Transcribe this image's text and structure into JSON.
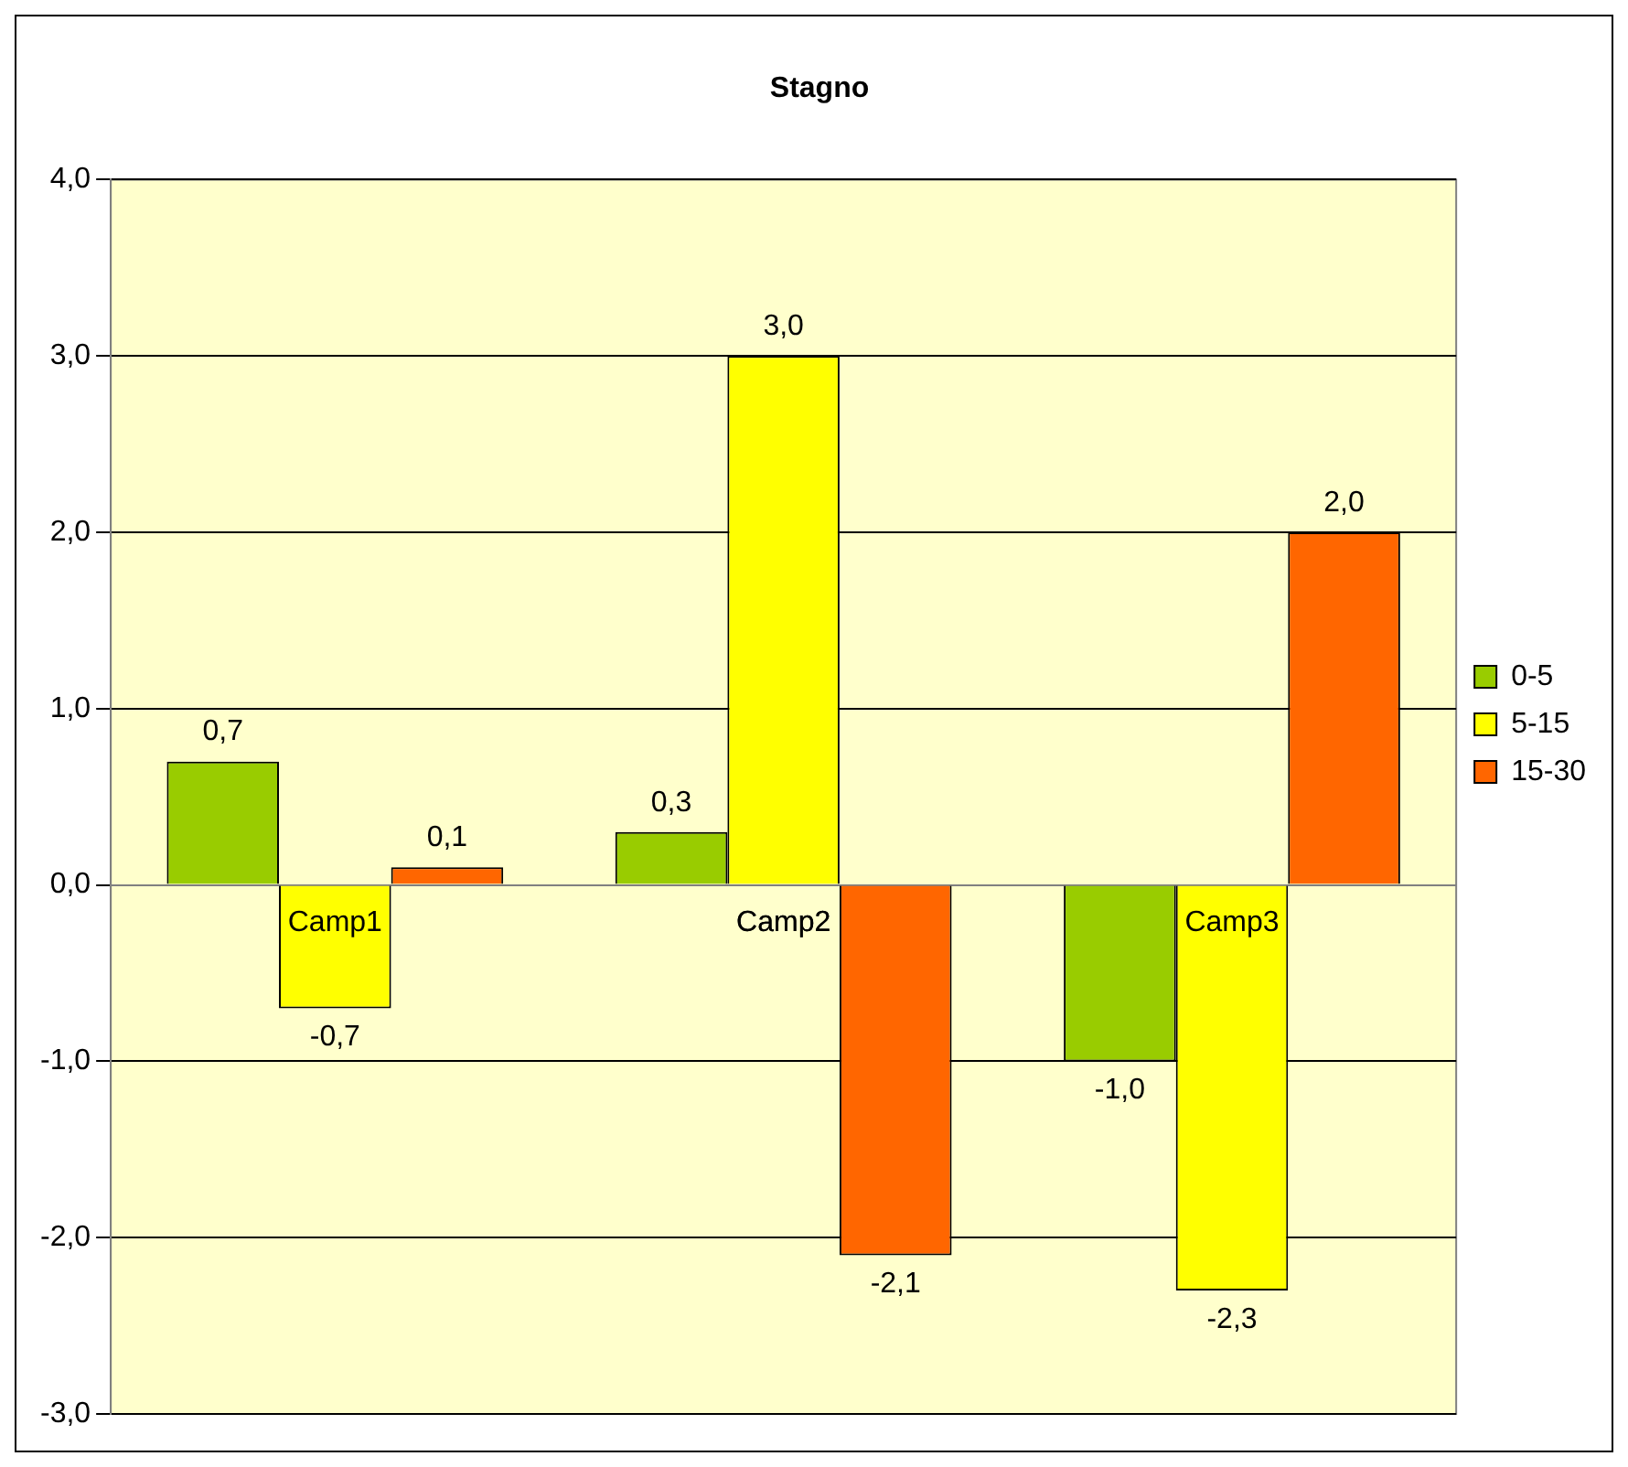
{
  "chart_data": {
    "type": "bar",
    "title": "Stagno",
    "categories": [
      "Camp1",
      "Camp2",
      "Camp3"
    ],
    "series": [
      {
        "name": "0-5",
        "color": "#99cc00",
        "values": [
          0.7,
          0.3,
          -1.0
        ],
        "value_labels": [
          "0,7",
          "0,3",
          "-1,0"
        ]
      },
      {
        "name": "5-15",
        "color": "#ffff00",
        "values": [
          -0.7,
          3.0,
          -2.3
        ],
        "value_labels": [
          "-0,7",
          "3,0",
          "-2,3"
        ]
      },
      {
        "name": "15-30",
        "color": "#ff6600",
        "values": [
          0.1,
          -2.1,
          2.0
        ],
        "value_labels": [
          "0,1",
          "-2,1",
          "2,0"
        ]
      }
    ],
    "ylim": [
      -3,
      4
    ],
    "yticks": [
      {
        "value": -3,
        "label": "-3,0"
      },
      {
        "value": -2,
        "label": "-2,0"
      },
      {
        "value": -1,
        "label": "-1,0"
      },
      {
        "value": 0,
        "label": "0,0"
      },
      {
        "value": 1,
        "label": "1,0"
      },
      {
        "value": 2,
        "label": "2,0"
      },
      {
        "value": 3,
        "label": "3,0"
      },
      {
        "value": 4,
        "label": "4,0"
      }
    ],
    "grid": "y",
    "legend": "right"
  }
}
